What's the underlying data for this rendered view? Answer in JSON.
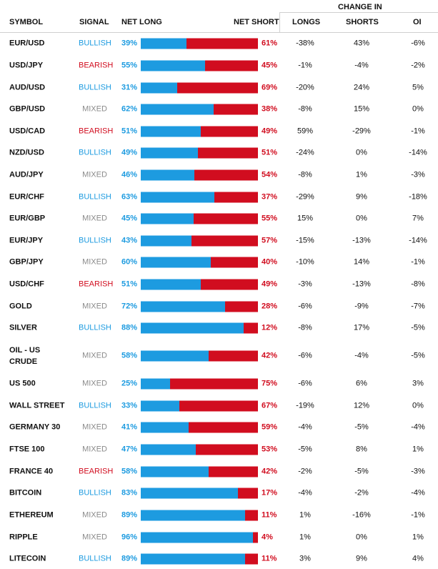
{
  "header": {
    "symbol": "SYMBOL",
    "signal": "SIGNAL",
    "net_long": "NET LONG",
    "net_short": "NET SHORT",
    "change_in": "CHANGE IN",
    "longs": "LONGS",
    "shorts": "SHORTS",
    "oi": "OI"
  },
  "colors": {
    "long": "#1d9be0",
    "short": "#d10d1f",
    "bullish": "#1d9be0",
    "bearish": "#d10d1f",
    "mixed": "#8a8a8a"
  },
  "rows": [
    {
      "symbol": "EUR/USD",
      "signal": "BULLISH",
      "net_long": "39%",
      "net_short": "61%",
      "longs": "-38%",
      "shorts": "43%",
      "oi": "-6%"
    },
    {
      "symbol": "USD/JPY",
      "signal": "BEARISH",
      "net_long": "55%",
      "net_short": "45%",
      "longs": "-1%",
      "shorts": "-4%",
      "oi": "-2%"
    },
    {
      "symbol": "AUD/USD",
      "signal": "BULLISH",
      "net_long": "31%",
      "net_short": "69%",
      "longs": "-20%",
      "shorts": "24%",
      "oi": "5%"
    },
    {
      "symbol": "GBP/USD",
      "signal": "MIXED",
      "net_long": "62%",
      "net_short": "38%",
      "longs": "-8%",
      "shorts": "15%",
      "oi": "0%"
    },
    {
      "symbol": "USD/CAD",
      "signal": "BEARISH",
      "net_long": "51%",
      "net_short": "49%",
      "longs": "59%",
      "shorts": "-29%",
      "oi": "-1%"
    },
    {
      "symbol": "NZD/USD",
      "signal": "BULLISH",
      "net_long": "49%",
      "net_short": "51%",
      "longs": "-24%",
      "shorts": "0%",
      "oi": "-14%"
    },
    {
      "symbol": "AUD/JPY",
      "signal": "MIXED",
      "net_long": "46%",
      "net_short": "54%",
      "longs": "-8%",
      "shorts": "1%",
      "oi": "-3%"
    },
    {
      "symbol": "EUR/CHF",
      "signal": "BULLISH",
      "net_long": "63%",
      "net_short": "37%",
      "longs": "-29%",
      "shorts": "9%",
      "oi": "-18%"
    },
    {
      "symbol": "EUR/GBP",
      "signal": "MIXED",
      "net_long": "45%",
      "net_short": "55%",
      "longs": "15%",
      "shorts": "0%",
      "oi": "7%"
    },
    {
      "symbol": "EUR/JPY",
      "signal": "BULLISH",
      "net_long": "43%",
      "net_short": "57%",
      "longs": "-15%",
      "shorts": "-13%",
      "oi": "-14%"
    },
    {
      "symbol": "GBP/JPY",
      "signal": "MIXED",
      "net_long": "60%",
      "net_short": "40%",
      "longs": "-10%",
      "shorts": "14%",
      "oi": "-1%"
    },
    {
      "symbol": "USD/CHF",
      "signal": "BEARISH",
      "net_long": "51%",
      "net_short": "49%",
      "longs": "-3%",
      "shorts": "-13%",
      "oi": "-8%"
    },
    {
      "symbol": "GOLD",
      "signal": "MIXED",
      "net_long": "72%",
      "net_short": "28%",
      "longs": "-6%",
      "shorts": "-9%",
      "oi": "-7%"
    },
    {
      "symbol": "SILVER",
      "signal": "BULLISH",
      "net_long": "88%",
      "net_short": "12%",
      "longs": "-8%",
      "shorts": "17%",
      "oi": "-5%"
    },
    {
      "symbol": "OIL - US CRUDE",
      "signal": "MIXED",
      "net_long": "58%",
      "net_short": "42%",
      "longs": "-6%",
      "shorts": "-4%",
      "oi": "-5%"
    },
    {
      "symbol": "US 500",
      "signal": "MIXED",
      "net_long": "25%",
      "net_short": "75%",
      "longs": "-6%",
      "shorts": "6%",
      "oi": "3%"
    },
    {
      "symbol": "WALL STREET",
      "signal": "BULLISH",
      "net_long": "33%",
      "net_short": "67%",
      "longs": "-19%",
      "shorts": "12%",
      "oi": "0%"
    },
    {
      "symbol": "GERMANY 30",
      "signal": "MIXED",
      "net_long": "41%",
      "net_short": "59%",
      "longs": "-4%",
      "shorts": "-5%",
      "oi": "-4%"
    },
    {
      "symbol": "FTSE 100",
      "signal": "MIXED",
      "net_long": "47%",
      "net_short": "53%",
      "longs": "-5%",
      "shorts": "8%",
      "oi": "1%"
    },
    {
      "symbol": "FRANCE 40",
      "signal": "BEARISH",
      "net_long": "58%",
      "net_short": "42%",
      "longs": "-2%",
      "shorts": "-5%",
      "oi": "-3%"
    },
    {
      "symbol": "BITCOIN",
      "signal": "BULLISH",
      "net_long": "83%",
      "net_short": "17%",
      "longs": "-4%",
      "shorts": "-2%",
      "oi": "-4%"
    },
    {
      "symbol": "ETHEREUM",
      "signal": "MIXED",
      "net_long": "89%",
      "net_short": "11%",
      "longs": "1%",
      "shorts": "-16%",
      "oi": "-1%"
    },
    {
      "symbol": "RIPPLE",
      "signal": "MIXED",
      "net_long": "96%",
      "net_short": "4%",
      "longs": "1%",
      "shorts": "0%",
      "oi": "1%"
    },
    {
      "symbol": "LITECOIN",
      "signal": "BULLISH",
      "net_long": "89%",
      "net_short": "11%",
      "longs": "3%",
      "shorts": "9%",
      "oi": "4%"
    }
  ]
}
